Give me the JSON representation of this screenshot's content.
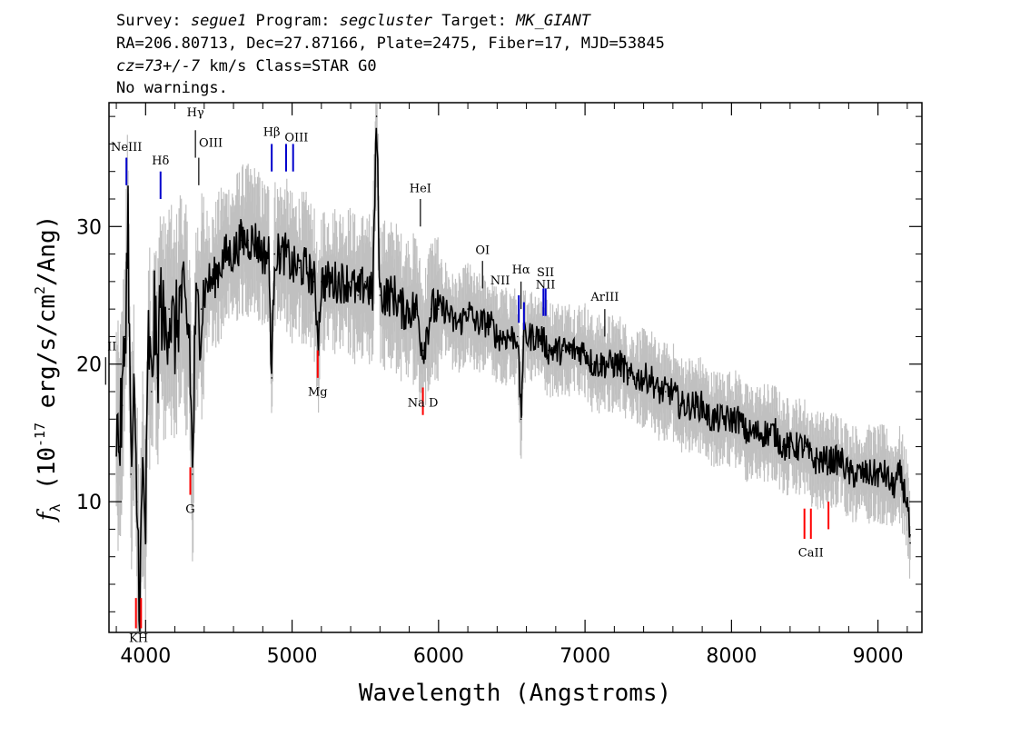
{
  "header": {
    "line1": {
      "survey_label": "Survey: ",
      "survey": "segue1",
      "program_label": " Program: ",
      "program": "segcluster",
      "target_label": " Target: ",
      "target": "MK_GIANT"
    },
    "line2": "RA=206.80713, Dec=27.87166, Plate=2475, Fiber=17, MJD=53845",
    "line3": {
      "cz": "cz=73+/-7",
      "rest": " km/s Class=STAR G0"
    },
    "line4": "No warnings."
  },
  "chart_data": {
    "type": "line",
    "xlabel": "Wavelength (Angstroms)",
    "ylabel": {
      "prefix": "f",
      "sub": "λ",
      "mid": " (10",
      "sup": "-17",
      "rest": " erg/s/cm",
      "sup2": "2",
      "end": "/Ang)"
    },
    "xlim": [
      3750,
      9300
    ],
    "ylim": [
      0.5,
      39
    ],
    "x_ticks": [
      4000,
      5000,
      6000,
      7000,
      8000,
      9000
    ],
    "y_ticks": [
      10,
      20,
      30
    ],
    "grid": false,
    "colors": {
      "flux": "#000000",
      "error": "#c0c0c0",
      "emission": "#0000cc",
      "absorption": "#ff0000",
      "other": "#000000"
    },
    "series": [
      {
        "points": [
          [
            3800,
            16
          ],
          [
            3820,
            14
          ],
          [
            3840,
            17
          ],
          [
            3860,
            22
          ],
          [
            3880,
            31
          ],
          [
            3900,
            12
          ],
          [
            3920,
            17
          ],
          [
            3940,
            10
          ],
          [
            3960,
            3
          ],
          [
            3980,
            12
          ],
          [
            4000,
            8
          ],
          [
            4020,
            22
          ],
          [
            4040,
            18
          ],
          [
            4060,
            24
          ],
          [
            4080,
            19
          ],
          [
            4100,
            25
          ],
          [
            4130,
            22
          ],
          [
            4160,
            24
          ],
          [
            4200,
            22
          ],
          [
            4240,
            25
          ],
          [
            4280,
            23
          ],
          [
            4300,
            22
          ],
          [
            4320,
            12
          ],
          [
            4340,
            23
          ],
          [
            4380,
            24
          ],
          [
            4420,
            26
          ],
          [
            4460,
            26
          ],
          [
            4500,
            27
          ],
          [
            4550,
            28
          ],
          [
            4600,
            28
          ],
          [
            4650,
            29
          ],
          [
            4700,
            29
          ],
          [
            4750,
            29
          ],
          [
            4800,
            28
          ],
          [
            4840,
            28
          ],
          [
            4861,
            19
          ],
          [
            4880,
            28
          ],
          [
            4920,
            28
          ],
          [
            4960,
            28
          ],
          [
            5000,
            27
          ],
          [
            5050,
            27
          ],
          [
            5100,
            27
          ],
          [
            5150,
            26
          ],
          [
            5180,
            22
          ],
          [
            5200,
            26
          ],
          [
            5250,
            26
          ],
          [
            5300,
            26
          ],
          [
            5350,
            26
          ],
          [
            5400,
            26
          ],
          [
            5450,
            25
          ],
          [
            5500,
            26
          ],
          [
            5550,
            25
          ],
          [
            5577,
            38
          ],
          [
            5600,
            25
          ],
          [
            5650,
            25
          ],
          [
            5700,
            25
          ],
          [
            5750,
            24
          ],
          [
            5800,
            24
          ],
          [
            5850,
            24
          ],
          [
            5893,
            21
          ],
          [
            5950,
            24
          ],
          [
            6000,
            24
          ],
          [
            6050,
            24
          ],
          [
            6100,
            23
          ],
          [
            6150,
            23
          ],
          [
            6200,
            24
          ],
          [
            6250,
            23
          ],
          [
            6300,
            23
          ],
          [
            6350,
            23
          ],
          [
            6400,
            22
          ],
          [
            6450,
            22
          ],
          [
            6500,
            22
          ],
          [
            6540,
            22
          ],
          [
            6563,
            16
          ],
          [
            6580,
            22
          ],
          [
            6620,
            22
          ],
          [
            6650,
            22
          ],
          [
            6700,
            22
          ],
          [
            6750,
            21
          ],
          [
            6800,
            21
          ],
          [
            6850,
            21
          ],
          [
            6900,
            21
          ],
          [
            6950,
            21
          ],
          [
            7000,
            21
          ],
          [
            7050,
            20
          ],
          [
            7100,
            20
          ],
          [
            7150,
            20
          ],
          [
            7200,
            20
          ],
          [
            7250,
            20
          ],
          [
            7300,
            19
          ],
          [
            7350,
            19
          ],
          [
            7400,
            19
          ],
          [
            7450,
            19
          ],
          [
            7500,
            18
          ],
          [
            7550,
            18
          ],
          [
            7600,
            18
          ],
          [
            7650,
            17
          ],
          [
            7700,
            17
          ],
          [
            7750,
            17
          ],
          [
            7800,
            17
          ],
          [
            7850,
            16
          ],
          [
            7900,
            16
          ],
          [
            7950,
            16
          ],
          [
            8000,
            16
          ],
          [
            8050,
            16
          ],
          [
            8100,
            15
          ],
          [
            8150,
            15
          ],
          [
            8200,
            15
          ],
          [
            8250,
            15
          ],
          [
            8300,
            15
          ],
          [
            8350,
            14
          ],
          [
            8400,
            14
          ],
          [
            8450,
            14
          ],
          [
            8500,
            14
          ],
          [
            8550,
            13
          ],
          [
            8600,
            13
          ],
          [
            8650,
            13
          ],
          [
            8700,
            13
          ],
          [
            8750,
            13
          ],
          [
            8800,
            12
          ],
          [
            8850,
            12
          ],
          [
            8900,
            12
          ],
          [
            8950,
            12
          ],
          [
            9000,
            12
          ],
          [
            9050,
            12
          ],
          [
            9100,
            11
          ],
          [
            9150,
            12
          ],
          [
            9200,
            10
          ],
          [
            9220,
            7
          ]
        ]
      }
    ],
    "lines": [
      {
        "label": "NeIII",
        "wl": 3869,
        "kind": "emission",
        "y0": 33,
        "y1": 35,
        "lx": 3869,
        "ly": 35.5
      },
      {
        "label": "Hδ",
        "wl": 4102,
        "kind": "emission",
        "y0": 32,
        "y1": 34,
        "lx": 4102,
        "ly": 34.5
      },
      {
        "label": "Hγ",
        "wl": 4340,
        "kind": "other",
        "y0": 35,
        "y1": 37,
        "lx": 4340,
        "ly": 38
      },
      {
        "label": "OIII",
        "wl": 4363,
        "kind": "other",
        "y0": 33,
        "y1": 35,
        "lx": 4445,
        "ly": 35.8
      },
      {
        "label": "Hβ",
        "wl": 4861,
        "kind": "emission",
        "y0": 34,
        "y1": 36,
        "lx": 4861,
        "ly": 36.6
      },
      {
        "label": "OIII",
        "wl": 4959,
        "kind": "emission",
        "y0": 34,
        "y1": 36,
        "lx": 5030,
        "ly": 36.2
      },
      {
        "label": "OIII",
        "wl": 5007,
        "kind": "emission",
        "y0": 34,
        "y1": 36,
        "lx": null,
        "ly": null
      },
      {
        "label": "HeI",
        "wl": 5876,
        "kind": "other",
        "y0": 30,
        "y1": 32,
        "lx": 5876,
        "ly": 32.5
      },
      {
        "label": "OI",
        "wl": 6300,
        "kind": "other",
        "y0": 25.5,
        "y1": 27.5,
        "lx": 6300,
        "ly": 28
      },
      {
        "label": "NII",
        "wl": 6548,
        "kind": "emission",
        "y0": 23,
        "y1": 25,
        "lx": 6420,
        "ly": 25.8
      },
      {
        "label": "Hα",
        "wl": 6563,
        "kind": "other",
        "y0": 24,
        "y1": 26,
        "lx": 6563,
        "ly": 26.6
      },
      {
        "label": "NII",
        "wl": 6583,
        "kind": "emission",
        "y0": 22.5,
        "y1": 24.5,
        "lx": 6730,
        "ly": 25.5
      },
      {
        "label": "SII",
        "wl": 6716,
        "kind": "emission",
        "y0": 23.5,
        "y1": 25.5,
        "lx": 6730,
        "ly": 26.4
      },
      {
        "label": "SII",
        "wl": 6731,
        "kind": "emission",
        "y0": 23.5,
        "y1": 25.5,
        "lx": null,
        "ly": null
      },
      {
        "label": "ArIII",
        "wl": 7135,
        "kind": "other",
        "y0": 22,
        "y1": 24,
        "lx": 7135,
        "ly": 24.6
      },
      {
        "label": "II",
        "wl": 3727,
        "kind": "other",
        "y0": 18.5,
        "y1": 20.5,
        "lx": 3770,
        "ly": 21
      },
      {
        "label": "KH",
        "wl": 3934,
        "kind": "absorption",
        "y0": 0.8,
        "y1": 3,
        "lx": 3952,
        "ly": -0.2
      },
      {
        "label": "KH",
        "wl": 3969,
        "kind": "absorption",
        "y0": 0.8,
        "y1": 3,
        "lx": null,
        "ly": null
      },
      {
        "label": "G",
        "wl": 4305,
        "kind": "absorption",
        "y0": 10.5,
        "y1": 12.5,
        "lx": 4305,
        "ly": 9.2
      },
      {
        "label": "Mg",
        "wl": 5175,
        "kind": "absorption",
        "y0": 19,
        "y1": 21,
        "lx": 5175,
        "ly": 17.7
      },
      {
        "label": "Na D",
        "wl": 5893,
        "kind": "absorption",
        "y0": 16.3,
        "y1": 18.3,
        "lx": 5893,
        "ly": 16.9
      },
      {
        "label": "CaII",
        "wl": 8498,
        "kind": "absorption",
        "y0": 7.3,
        "y1": 9.5,
        "lx": 8542,
        "ly": 6
      },
      {
        "label": "CaII",
        "wl": 8542,
        "kind": "absorption",
        "y0": 7.3,
        "y1": 9.5,
        "lx": null,
        "ly": null
      },
      {
        "label": "CaII",
        "wl": 8662,
        "kind": "absorption",
        "y0": 8,
        "y1": 10,
        "lx": null,
        "ly": null
      }
    ]
  }
}
